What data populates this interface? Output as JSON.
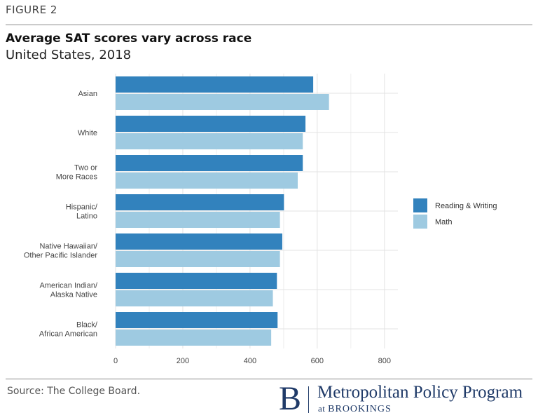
{
  "figure_label": "FIGURE 2",
  "title": "Average SAT scores vary across race",
  "subtitle": "United States, 2018",
  "source": "Source: The College Board.",
  "logo": {
    "mark": "B",
    "name": "Metropolitan Policy Program",
    "sub_prefix": "at",
    "sub_org": "BROOKINGS"
  },
  "chart_data": {
    "type": "bar",
    "orientation": "horizontal",
    "title": "Average SAT scores vary across race",
    "subtitle": "United States, 2018",
    "categories": [
      [
        "Asian"
      ],
      [
        "White"
      ],
      [
        "Two or",
        "More Races"
      ],
      [
        "Hispanic/",
        "Latino"
      ],
      [
        "Native Hawaiian/",
        "Other Pacific Islander"
      ],
      [
        "American Indian/",
        "Alaska Native"
      ],
      [
        "Black/",
        "African American"
      ]
    ],
    "series": [
      {
        "name": "Reading & Writing",
        "color": "#3282bd",
        "values": [
          588,
          565,
          557,
          501,
          496,
          480,
          482
        ]
      },
      {
        "name": "Math",
        "color": "#9ecae1",
        "values": [
          635,
          557,
          542,
          489,
          489,
          468,
          463
        ]
      }
    ],
    "xlim": [
      0,
      840
    ],
    "xticks": [
      0,
      200,
      400,
      600,
      800
    ],
    "grid": true,
    "legend": "right"
  }
}
